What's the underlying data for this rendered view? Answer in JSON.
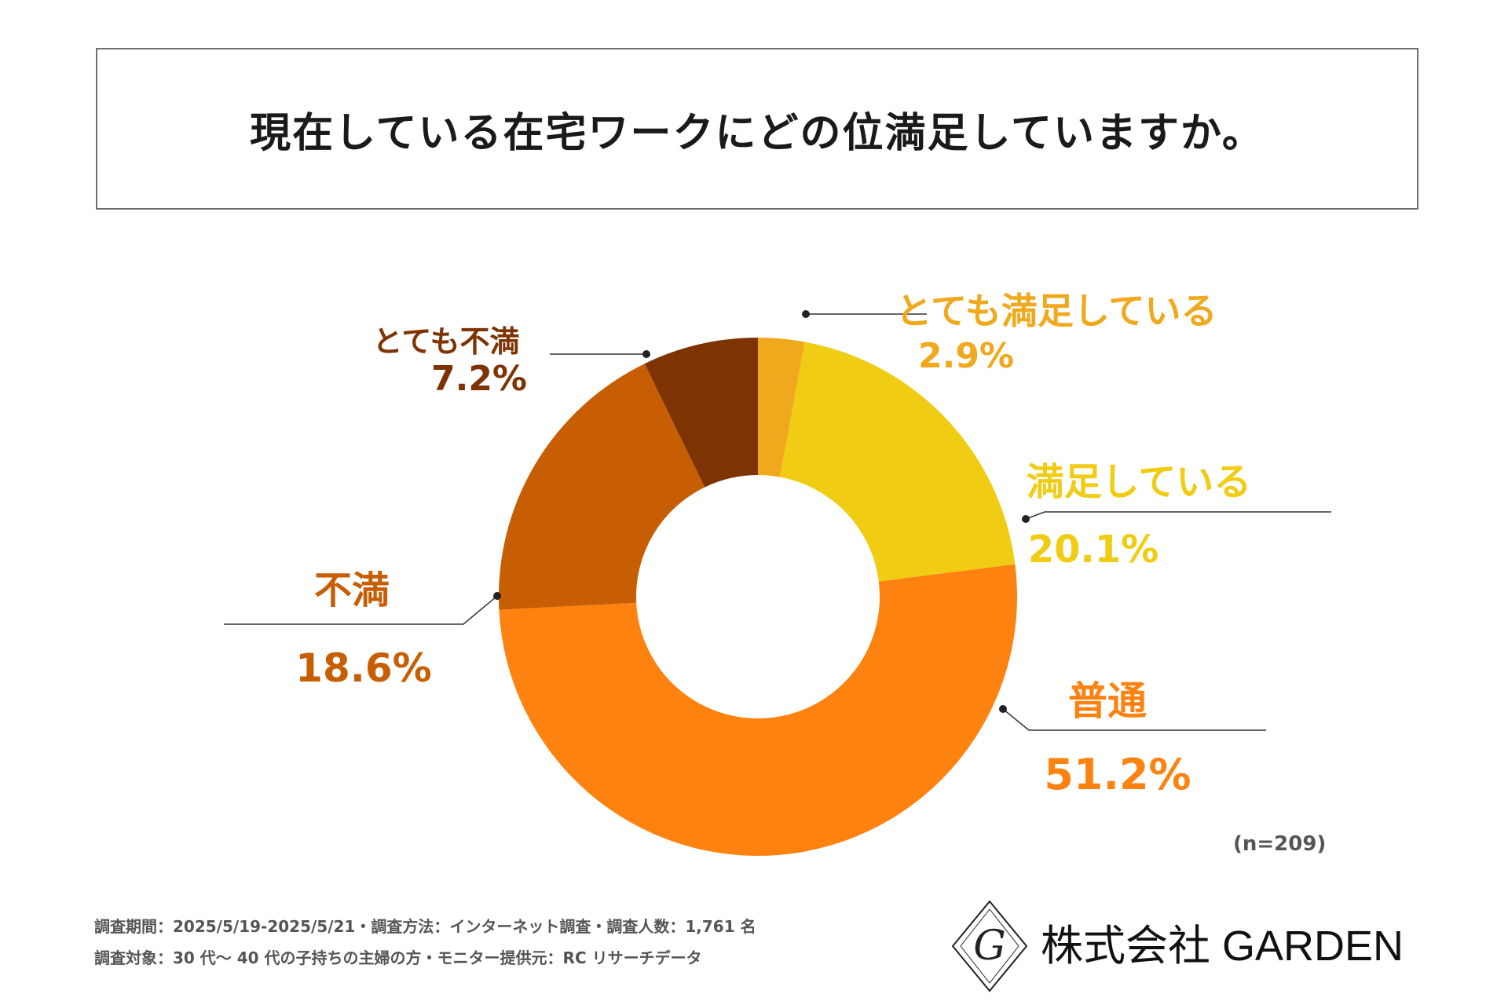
{
  "title": "現在している在宅ワークにどの位満足していますか。",
  "chart_data": {
    "type": "pie",
    "donut": true,
    "title": "現在している在宅ワークにどの位満足していますか。",
    "sample_size": "(n=209)",
    "slices": [
      {
        "label": "とても満足している",
        "value": 2.9,
        "value_label": "2.9%",
        "color": "#f0a81c"
      },
      {
        "label": "満足している",
        "value": 20.1,
        "value_label": "20.1%",
        "color": "#f1cc14"
      },
      {
        "label": "普通",
        "value": 51.2,
        "value_label": "51.2%",
        "color": "#fd8210"
      },
      {
        "label": "不満",
        "value": 18.6,
        "value_label": "18.6%",
        "color": "#c85e03"
      },
      {
        "label": "とても不満",
        "value": 7.2,
        "value_label": "7.2%",
        "color": "#7d3302"
      }
    ]
  },
  "notes": {
    "line1": "調査期間：2025/5/19-2025/5/21・調査方法：インターネット調査・調査人数：1,761 名",
    "line2": "調査対象：30 代〜 40 代の子持ちの主婦の方・モニター提供元：RC リサーチデータ"
  },
  "logo": {
    "company": "株式会社 GARDEN",
    "monogram": "G"
  },
  "colors": {
    "leader_line": "#333333"
  }
}
